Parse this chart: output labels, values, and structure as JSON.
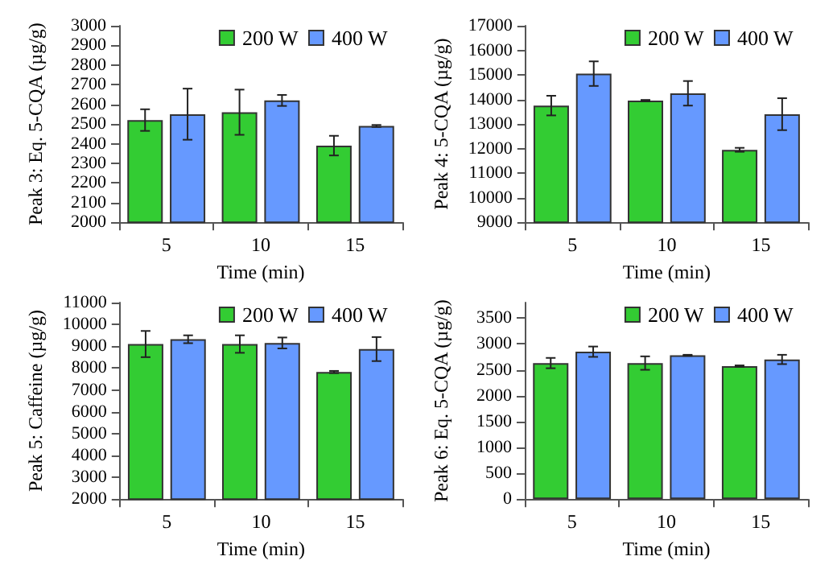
{
  "chart_data": [
    {
      "type": "bar",
      "categories": [
        "5",
        "10",
        "15"
      ],
      "xlabel": "Time (min)",
      "ylabel": "Peak 3: Eq. 5-CQA (µg/g)",
      "ylim": [
        2000,
        3000
      ],
      "yticks": [
        2000,
        2100,
        2200,
        2300,
        2400,
        2500,
        2600,
        2700,
        2800,
        2900,
        3000
      ],
      "legend": "top right",
      "grid": false,
      "series": [
        {
          "name": "200 W",
          "color": "#33cc33",
          "values": [
            2520,
            2560,
            2390
          ],
          "errors": [
            55,
            115,
            50
          ]
        },
        {
          "name": "400 W",
          "color": "#6699ff",
          "values": [
            2550,
            2620,
            2490
          ],
          "errors": [
            130,
            28,
            5
          ]
        }
      ]
    },
    {
      "type": "bar",
      "categories": [
        "5",
        "10",
        "15"
      ],
      "xlabel": "Time (min)",
      "ylabel": "Peak 4: 5-CQA (µg/g)",
      "ylim": [
        9000,
        17000
      ],
      "yticks": [
        9000,
        10000,
        11000,
        12000,
        13000,
        14000,
        15000,
        16000,
        17000
      ],
      "legend": "top right",
      "grid": false,
      "series": [
        {
          "name": "200 W",
          "color": "#33cc33",
          "values": [
            13750,
            13950,
            11950
          ],
          "errors": [
            400,
            30,
            80
          ]
        },
        {
          "name": "400 W",
          "color": "#6699ff",
          "values": [
            15050,
            14250,
            13400
          ],
          "errors": [
            500,
            500,
            650
          ]
        }
      ]
    },
    {
      "type": "bar",
      "categories": [
        "5",
        "10",
        "15"
      ],
      "xlabel": "Time (min)",
      "ylabel": "Peak 5: Caffeine (µg/g)",
      "ylim": [
        2000,
        11000
      ],
      "yticks": [
        2000,
        3000,
        4000,
        5000,
        6000,
        7000,
        8000,
        9000,
        10000,
        11000
      ],
      "legend": "top right",
      "grid": false,
      "series": [
        {
          "name": "200 W",
          "color": "#33cc33",
          "values": [
            9100,
            9100,
            7820
          ],
          "errors": [
            600,
            400,
            50
          ]
        },
        {
          "name": "400 W",
          "color": "#6699ff",
          "values": [
            9320,
            9150,
            8870
          ],
          "errors": [
            180,
            250,
            550
          ]
        }
      ]
    },
    {
      "type": "bar",
      "categories": [
        "5",
        "10",
        "15"
      ],
      "xlabel": "Time (min)",
      "ylabel": "Peak 6: Eq. 5-CQA (µg/g)",
      "ylim": [
        0,
        3800
      ],
      "yticks": [
        0,
        500,
        1000,
        1500,
        2000,
        2500,
        3000,
        3500
      ],
      "legend": "top right",
      "grid": false,
      "series": [
        {
          "name": "200 W",
          "color": "#33cc33",
          "values": [
            2630,
            2630,
            2570
          ],
          "errors": [
            100,
            130,
            15
          ]
        },
        {
          "name": "400 W",
          "color": "#6699ff",
          "values": [
            2850,
            2780,
            2700
          ],
          "errors": [
            100,
            10,
            90
          ]
        }
      ]
    }
  ]
}
